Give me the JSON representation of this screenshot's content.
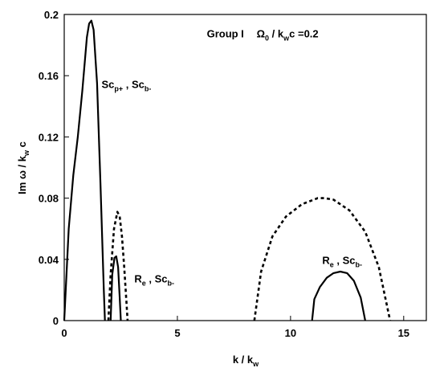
{
  "chart_data": {
    "type": "line",
    "title": "",
    "xlabel": {
      "main": "k / k",
      "sub": "w"
    },
    "ylabel": {
      "parts": [
        {
          "t": "Im ω / k"
        },
        {
          "t": "w",
          "sub": true
        },
        {
          "t": " c"
        }
      ]
    },
    "xlim": [
      0,
      16
    ],
    "ylim": [
      0,
      0.2
    ],
    "x_ticks": [
      0,
      5,
      10,
      15
    ],
    "x_tick_labels": [
      "0",
      "5",
      "10",
      "15"
    ],
    "y_ticks": [
      0,
      0.04,
      0.08,
      0.12,
      0.16,
      0.2
    ],
    "y_tick_labels": [
      "0",
      "0.04",
      "0.08",
      "0.12",
      "0.16",
      "0.2"
    ],
    "grid": false,
    "series": [
      {
        "style": "solid",
        "x": [
          0,
          0.2,
          0.4,
          0.6,
          0.8,
          1.0,
          1.1,
          1.2,
          1.3,
          1.45,
          1.6,
          1.75,
          1.8
        ],
        "y": [
          0,
          0.06,
          0.095,
          0.12,
          0.15,
          0.185,
          0.194,
          0.196,
          0.19,
          0.155,
          0.09,
          0.02,
          0
        ]
      },
      {
        "style": "dotted",
        "x": [
          1.95,
          2.05,
          2.2,
          2.35,
          2.45,
          2.55,
          2.65,
          2.75,
          2.8
        ],
        "y": [
          0,
          0.03,
          0.06,
          0.071,
          0.068,
          0.055,
          0.035,
          0.012,
          0
        ]
      },
      {
        "style": "solid",
        "x": [
          2.05,
          2.12,
          2.22,
          2.3,
          2.38,
          2.45,
          2.5
        ],
        "y": [
          0,
          0.03,
          0.041,
          0.042,
          0.035,
          0.015,
          0
        ]
      },
      {
        "style": "dotted",
        "x": [
          8.4,
          8.7,
          9.2,
          9.8,
          10.5,
          11.2,
          11.5,
          11.9,
          12.6,
          13.3,
          13.9,
          14.4
        ],
        "y": [
          0,
          0.032,
          0.055,
          0.068,
          0.076,
          0.08,
          0.08,
          0.079,
          0.072,
          0.058,
          0.035,
          0
        ]
      },
      {
        "style": "solid",
        "x": [
          10.95,
          11.05,
          11.3,
          11.6,
          11.9,
          12.2,
          12.5,
          12.8,
          13.1,
          13.3
        ],
        "y": [
          0,
          0.014,
          0.022,
          0.028,
          0.031,
          0.032,
          0.031,
          0.026,
          0.015,
          0
        ]
      }
    ],
    "annotations": [
      {
        "x": 6.3,
        "y": 0.185,
        "parts": [
          {
            "t": "Group I"
          }
        ]
      },
      {
        "x": 8.5,
        "y": 0.185,
        "parts": [
          {
            "t": "Ω"
          },
          {
            "t": "0",
            "sub": true
          },
          {
            "t": " / k"
          },
          {
            "t": "w",
            "sub": true
          },
          {
            "t": "c =0.2"
          }
        ]
      },
      {
        "x": 1.65,
        "y": 0.152,
        "parts": [
          {
            "t": "Sc"
          },
          {
            "t": "p+",
            "sub": true
          },
          {
            "t": " , Sc"
          },
          {
            "t": "b-",
            "sub": true
          }
        ]
      },
      {
        "x": 3.1,
        "y": 0.025,
        "parts": [
          {
            "t": "R"
          },
          {
            "t": "e",
            "sub": true
          },
          {
            "t": " , Sc"
          },
          {
            "t": "b-",
            "sub": true
          }
        ]
      },
      {
        "x": 11.4,
        "y": 0.037,
        "parts": [
          {
            "t": "R"
          },
          {
            "t": "e",
            "sub": true
          },
          {
            "t": " , Sc"
          },
          {
            "t": "b-",
            "sub": true
          }
        ]
      }
    ]
  }
}
